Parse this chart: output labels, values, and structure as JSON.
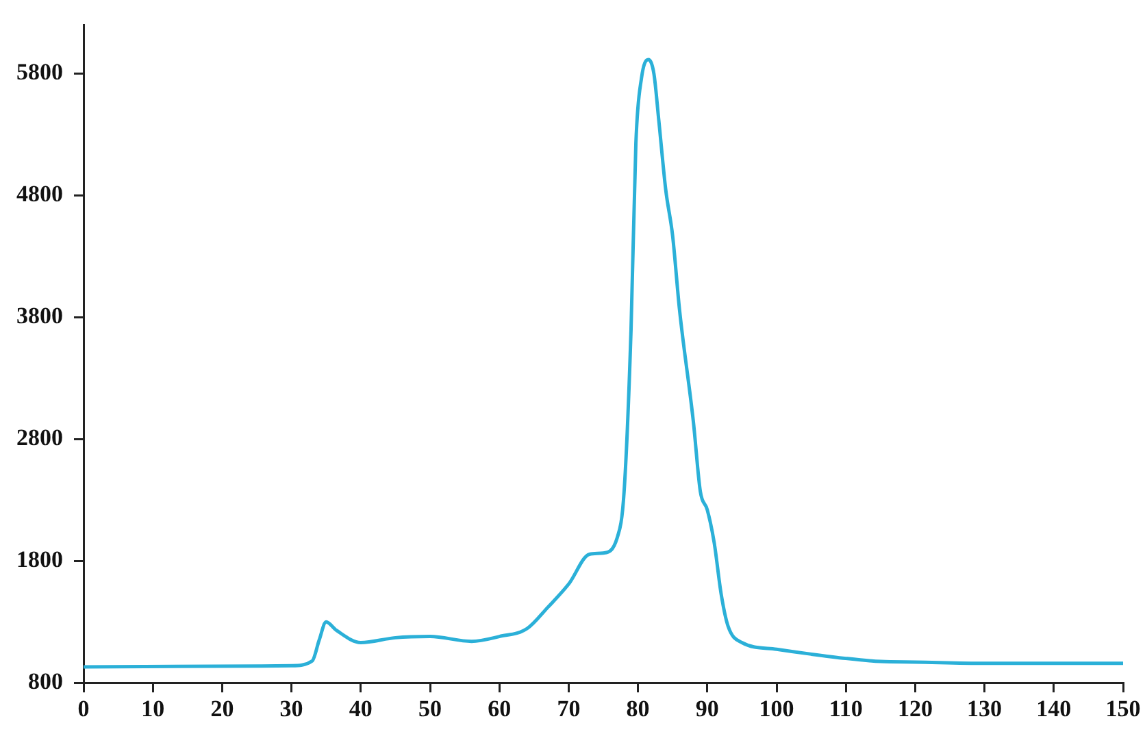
{
  "chart_data": {
    "type": "line",
    "color": "#2bb0d8",
    "x": [
      0,
      30,
      33,
      34,
      35,
      36.5,
      40,
      45,
      50,
      56,
      60,
      64,
      67,
      70,
      73,
      75,
      77,
      78,
      79,
      79.7,
      80.5,
      81.5,
      82.3,
      83,
      84,
      85,
      86,
      88,
      89,
      90,
      91,
      92,
      93,
      95,
      100,
      105,
      110,
      115,
      120,
      130,
      140,
      150
    ],
    "values": [
      930,
      940,
      980,
      1150,
      1300,
      1230,
      1130,
      1170,
      1180,
      1140,
      1180,
      1245,
      1420,
      1610,
      1855,
      1865,
      1990,
      2370,
      3700,
      5230,
      5760,
      5915,
      5800,
      5420,
      4850,
      4470,
      3860,
      2940,
      2370,
      2220,
      1950,
      1530,
      1265,
      1130,
      1075,
      1035,
      1000,
      975,
      970,
      960,
      960,
      960
    ],
    "xlim": [
      0,
      150
    ],
    "xticks": [
      0,
      10,
      20,
      30,
      40,
      50,
      60,
      70,
      80,
      90,
      100,
      110,
      120,
      130,
      140,
      150
    ],
    "ylim": [
      800,
      6200
    ],
    "yticks": [
      800,
      1800,
      2800,
      3800,
      4800,
      5800
    ],
    "grid": false,
    "legend": false,
    "marker": "none",
    "line_style": "solid"
  }
}
